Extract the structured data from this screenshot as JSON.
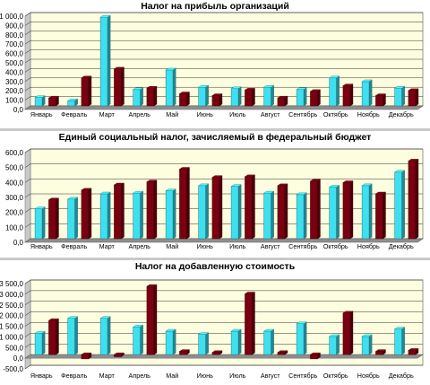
{
  "colors": {
    "series_a": "#3ee0f0",
    "series_b": "#7a0010",
    "plot_bg": "#fdfde0",
    "floor": "#8f8f8f"
  },
  "chart_data": [
    {
      "type": "bar",
      "title": "Налог на прибыль организаций",
      "categories": [
        "Январь",
        "Февраль",
        "Март",
        "Апрель",
        "Май",
        "Июнь",
        "Июль",
        "Август",
        "Сентябрь",
        "Октябрь",
        "Ноябрь",
        "Декабрь"
      ],
      "series": [
        {
          "values": [
            90,
            55,
            950,
            175,
            385,
            200,
            185,
            200,
            175,
            300,
            260,
            190
          ]
        },
        {
          "values": [
            85,
            300,
            395,
            190,
            130,
            110,
            170,
            85,
            155,
            215,
            110,
            165
          ]
        }
      ],
      "ylim": [
        0,
        1000
      ],
      "yticks": [
        "0,0",
        "100,0",
        "200,0",
        "300,0",
        "400,0",
        "500,0",
        "600,0",
        "700,0",
        "800,0",
        "900,0",
        "1 000,0"
      ]
    },
    {
      "type": "bar",
      "title": "Единый социальный налог, зачисляемый в федеральный бюджет",
      "categories": [
        "Январь",
        "Февраль",
        "Март",
        "Апрель",
        "Май",
        "Июнь",
        "Июль",
        "Август",
        "Сентябрь",
        "Октябрь",
        "Ноябрь",
        "Декабрь"
      ],
      "series": [
        {
          "values": [
            200,
            265,
            300,
            305,
            320,
            355,
            350,
            305,
            295,
            345,
            355,
            445
          ]
        },
        {
          "values": [
            260,
            325,
            360,
            380,
            465,
            410,
            415,
            355,
            385,
            375,
            300,
            520
          ]
        }
      ],
      "ylim": [
        0,
        600
      ],
      "yticks": [
        "0,0",
        "100,0",
        "200,0",
        "300,0",
        "400,0",
        "500,0",
        "600,0"
      ]
    },
    {
      "type": "bar",
      "title": "Налог на добавленную стоимость",
      "categories": [
        "Январь",
        "Февраль",
        "Март",
        "Апрель",
        "Май",
        "Июнь",
        "Июль",
        "Август",
        "Сентябрь",
        "Октябрь",
        "Ноябрь",
        "Декабрь"
      ],
      "series": [
        {
          "values": [
            1000,
            1700,
            1700,
            1300,
            1100,
            950,
            1100,
            1100,
            1450,
            850,
            850,
            1200
          ]
        },
        {
          "values": [
            1600,
            -200,
            -100,
            3200,
            150,
            100,
            2850,
            100,
            -200,
            1950,
            150,
            200
          ]
        }
      ],
      "ylim": [
        -500,
        3500
      ],
      "yticks": [
        "-500,0",
        "0,0",
        "500,0",
        "1 000,0",
        "1 500,0",
        "2 000,0",
        "2 500,0",
        "3 000,0",
        "3 500,0"
      ]
    }
  ]
}
